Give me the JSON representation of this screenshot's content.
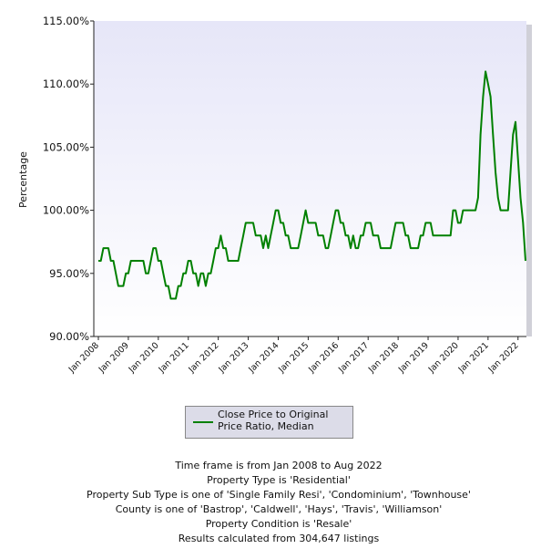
{
  "chart_data": {
    "type": "line",
    "ylabel": "Percentage",
    "xlabel": "",
    "ylim": [
      90,
      115
    ],
    "ytick_labels": [
      "90.00%",
      "95.00%",
      "100.00%",
      "105.00%",
      "110.00%",
      "115.00%"
    ],
    "yticks": [
      90,
      95,
      100,
      105,
      110,
      115
    ],
    "x_start": "Jan 2008",
    "x_end": "Aug 2022",
    "xtick_labels": [
      "Jan 2008",
      "Jan 2009",
      "Jan 2010",
      "Jan 2011",
      "Jan 2012",
      "Jan 2013",
      "Jan 2014",
      "Jan 2015",
      "Jan 2016",
      "Jan 2017",
      "Jan 2018",
      "Jan 2019",
      "Jan 2020",
      "Jan 2021",
      "Jan 2022"
    ],
    "legend_position": "bottom",
    "grid": false,
    "series": [
      {
        "name": "Close Price to Original Price Ratio, Median",
        "color": "#008000",
        "values": [
          96,
          96,
          97,
          97,
          97,
          96,
          96,
          95,
          94,
          94,
          94,
          95,
          95,
          96,
          96,
          96,
          96,
          96,
          96,
          95,
          95,
          96,
          97,
          97,
          96,
          96,
          95,
          94,
          94,
          93,
          93,
          93,
          94,
          94,
          95,
          95,
          96,
          96,
          95,
          95,
          94,
          95,
          95,
          94,
          95,
          95,
          96,
          97,
          97,
          98,
          97,
          97,
          96,
          96,
          96,
          96,
          96,
          97,
          98,
          99,
          99,
          99,
          99,
          98,
          98,
          98,
          97,
          98,
          97,
          98,
          99,
          100,
          100,
          99,
          99,
          98,
          98,
          97,
          97,
          97,
          97,
          98,
          99,
          100,
          99,
          99,
          99,
          99,
          98,
          98,
          98,
          97,
          97,
          98,
          99,
          100,
          100,
          99,
          99,
          98,
          98,
          97,
          98,
          97,
          97,
          98,
          98,
          99,
          99,
          99,
          98,
          98,
          98,
          97,
          97,
          97,
          97,
          97,
          98,
          99,
          99,
          99,
          99,
          98,
          98,
          97,
          97,
          97,
          97,
          98,
          98,
          99,
          99,
          99,
          98,
          98,
          98,
          98,
          98,
          98,
          98,
          98,
          100,
          100,
          99,
          99,
          100,
          100,
          100,
          100,
          100,
          100,
          101,
          106,
          109,
          111,
          110,
          109,
          106,
          103,
          101,
          100,
          100,
          100,
          100,
          103,
          106,
          107,
          104,
          101,
          99,
          96
        ]
      }
    ]
  },
  "legend": {
    "label": "Close Price to Original Price Ratio, Median"
  },
  "criteria": [
    "Time frame is from Jan 2008 to Aug 2022",
    "Property Type is 'Residential'",
    "Property Sub Type is one of 'Single Family Resi', 'Condominium', 'Townhouse'",
    "County is one of 'Bastrop', 'Caldwell', 'Hays', 'Travis', 'Williamson'",
    "Property Condition is 'Resale'",
    "Results calculated from 304,647 listings"
  ],
  "colors": {
    "plot_background_top": "#e6e6f8",
    "plot_background_bottom": "#ffffff",
    "line": "#008000",
    "legend_background": "#dcdce8"
  }
}
